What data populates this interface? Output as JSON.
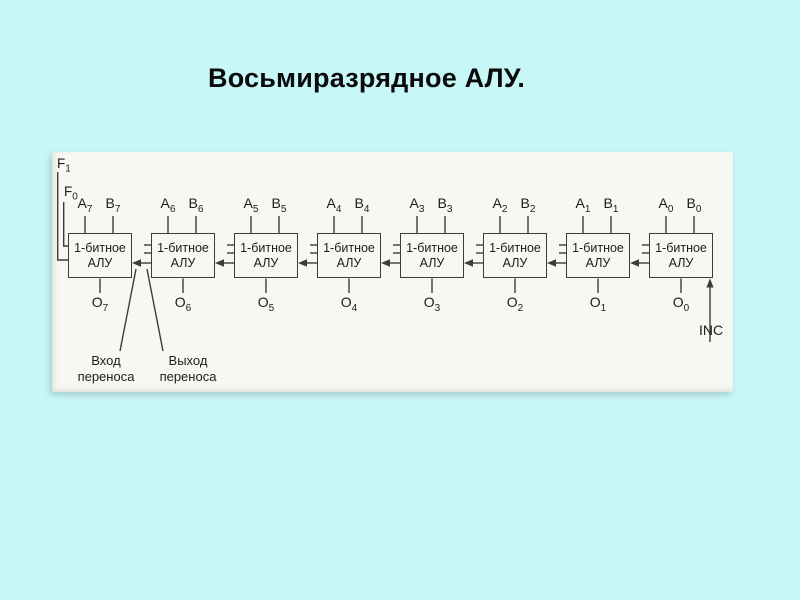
{
  "title": "Восьмиразрядное АЛУ.",
  "diagram": {
    "block": {
      "line1": "1-битное",
      "line2": "АЛУ"
    },
    "pins": {
      "a": "A",
      "b": "B",
      "o": "O",
      "f": "F"
    },
    "bits": [
      "7",
      "6",
      "5",
      "4",
      "3",
      "2",
      "1",
      "0"
    ],
    "f_bits": [
      "1",
      "0"
    ],
    "carry_in": {
      "line1": "Вход",
      "line2": "переноса"
    },
    "carry_out": {
      "line1": "Выход",
      "line2": "переноса"
    },
    "inc": "INC",
    "colors": {
      "slide_bg": "#c7f8f7",
      "paper_bg": "#f7f7f3",
      "line": "#3c3c3c",
      "text": "#1c1c1c"
    }
  }
}
